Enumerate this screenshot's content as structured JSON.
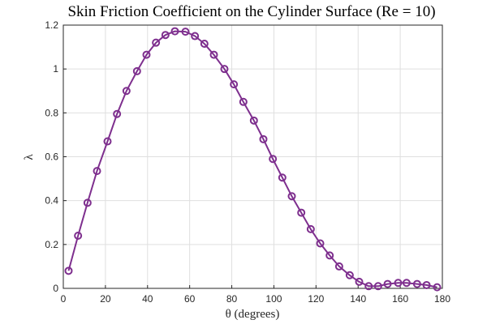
{
  "chart_data": {
    "type": "line",
    "title": "Skin Friction Coefficient on the Cylinder Surface (Re = 10)",
    "xlabel": "θ (degrees)",
    "ylabel": "λ",
    "xlim": [
      0,
      180
    ],
    "ylim": [
      0,
      1.2
    ],
    "xticks": [
      0,
      20,
      40,
      60,
      80,
      100,
      120,
      140,
      160,
      180
    ],
    "yticks": [
      0,
      0.2,
      0.4,
      0.6,
      0.8,
      1,
      1.2
    ],
    "xtick_labels": [
      "0",
      "20",
      "40",
      "60",
      "80",
      "100",
      "120",
      "140",
      "160",
      "180"
    ],
    "ytick_labels": [
      "0",
      "0.2",
      "0.4",
      "0.6",
      "0.8",
      "1",
      "1.2"
    ],
    "grid": true,
    "color": "#7e2f8e",
    "marker": "circle",
    "x": [
      2.5,
      7,
      11.5,
      16,
      21,
      25.5,
      30,
      35,
      39.5,
      44,
      48.5,
      53,
      58,
      62.5,
      67,
      71.5,
      76.5,
      81,
      85.5,
      90.5,
      95,
      99.5,
      104,
      108.5,
      113,
      117.5,
      122,
      126.5,
      131,
      136,
      140.5,
      145,
      149.5,
      154,
      159,
      163,
      168,
      172.5,
      177.5
    ],
    "y": [
      0.08,
      0.24,
      0.39,
      0.535,
      0.67,
      0.795,
      0.9,
      0.99,
      1.065,
      1.12,
      1.155,
      1.172,
      1.17,
      1.15,
      1.115,
      1.065,
      1.0,
      0.93,
      0.85,
      0.765,
      0.68,
      0.59,
      0.505,
      0.42,
      0.345,
      0.27,
      0.205,
      0.15,
      0.1,
      0.06,
      0.03,
      0.01,
      0.01,
      0.02,
      0.025,
      0.025,
      0.02,
      0.015,
      0.005
    ]
  }
}
